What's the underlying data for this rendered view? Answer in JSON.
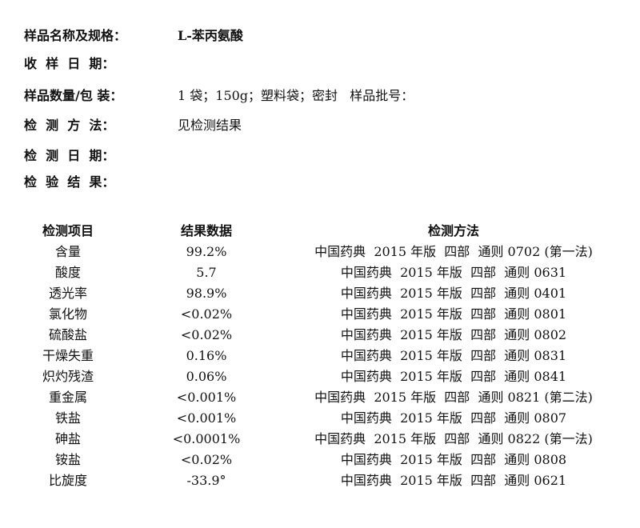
{
  "info": [
    {
      "label": "样品名称及规格：",
      "value": "L-苯丙氨酸"
    },
    {
      "label": "收  样  日  期：",
      "value": ""
    },
    {
      "label": "样品数量/包 装：",
      "value": "1 袋；150g；塑料袋；密封   样品批号："
    },
    {
      "label": "检  测  方  法：",
      "value": "见检测结果"
    },
    {
      "label": "检  测  日  期：",
      "value": ""
    },
    {
      "label": "检  验  结  果：",
      "value": ""
    }
  ],
  "table": {
    "headers": [
      "检测项目",
      "结果数据",
      "检测方法"
    ],
    "rows": [
      [
        "含量",
        "99.2%",
        "中国药典  2015 年版  四部  通则 0702 (第一法)"
      ],
      [
        "酸度",
        "5.7",
        "中国药典  2015 年版  四部  通则 0631"
      ],
      [
        "透光率",
        "98.9%",
        "中国药典  2015 年版  四部  通则 0401"
      ],
      [
        "氯化物",
        "<0.02%",
        "中国药典  2015 年版  四部  通则 0801"
      ],
      [
        "硫酸盐",
        "<0.02%",
        "中国药典  2015 年版  四部  通则 0802"
      ],
      [
        "干燥失重",
        "0.16%",
        "中国药典  2015 年版  四部  通则 0831"
      ],
      [
        "炽灼残渣",
        "0.06%",
        "中国药典  2015 年版  四部  通则 0841"
      ],
      [
        "重金属",
        "<0.001%",
        "中国药典  2015 年版  四部  通则 0821 (第二法)"
      ],
      [
        "铁盐",
        "<0.001%",
        "中国药典  2015 年版  四部  通则 0807"
      ],
      [
        "砷盐",
        "<0.0001%",
        "中国药典  2015 年版  四部  通则 0822 (第一法)"
      ],
      [
        "铵盐",
        "<0.02%",
        "中国药典  2015 年版  四部  通则 0808"
      ],
      [
        "比旋度",
        "-33.9°",
        "中国药典  2015 年版  四部  通则 0621"
      ]
    ]
  }
}
